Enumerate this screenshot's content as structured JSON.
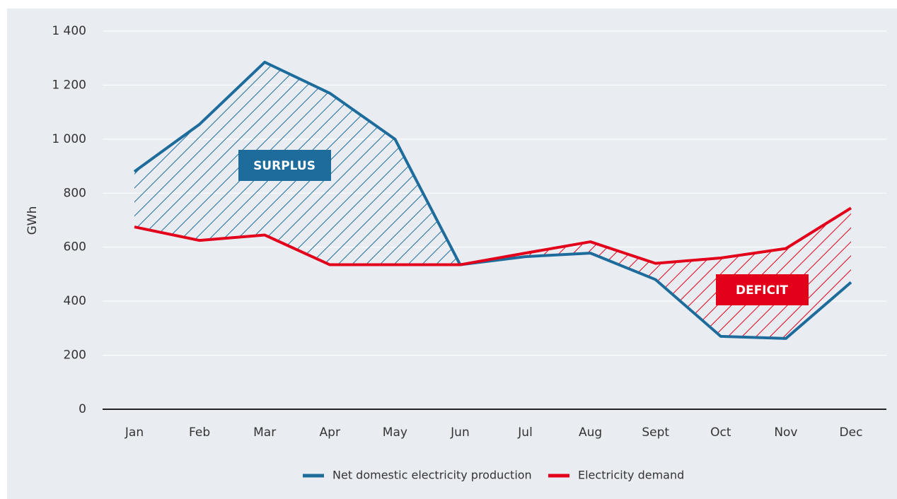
{
  "chart_data": {
    "type": "line",
    "ylabel": "GWh",
    "categories": [
      "Jan",
      "Feb",
      "Mar",
      "Apr",
      "May",
      "Jun",
      "Jul",
      "Aug",
      "Sept",
      "Oct",
      "Nov",
      "Dec"
    ],
    "series": [
      {
        "name": "Net domestic electricity production",
        "color": "#1d6c9c",
        "values": [
          880,
          1055,
          1285,
          1170,
          1000,
          535,
          565,
          578,
          480,
          270,
          262,
          470
        ]
      },
      {
        "name": "Electricity demand",
        "color": "#e2001a",
        "values": [
          675,
          625,
          645,
          535,
          535,
          535,
          578,
          620,
          540,
          560,
          595,
          745
        ]
      }
    ],
    "annotations": [
      {
        "text": "SURPLUS"
      },
      {
        "text": "DEFICIT"
      }
    ],
    "ylim": [
      0,
      1400
    ],
    "yticks": [
      0,
      200,
      400,
      600,
      800,
      {
        "value": 1000,
        "label": "1 000"
      },
      {
        "value": 1200,
        "label": "1 200"
      },
      {
        "value": 1400,
        "label": "1 400"
      }
    ],
    "grid": true,
    "legend": "bottom"
  }
}
